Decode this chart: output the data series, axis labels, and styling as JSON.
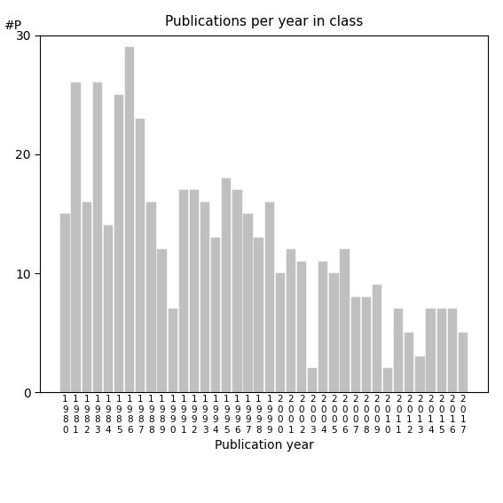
{
  "title": "Publications per year in class",
  "xlabel": "Publication year",
  "ylabel_text": "#P",
  "bar_color": "#c0c0c0",
  "bar_edgecolor": "#c0c0c0",
  "background_color": "#ffffff",
  "ylim": [
    0,
    30
  ],
  "yticks": [
    0,
    10,
    20,
    30
  ],
  "years": [
    1980,
    1981,
    1982,
    1983,
    1984,
    1985,
    1986,
    1987,
    1988,
    1989,
    1990,
    1991,
    1992,
    1993,
    1994,
    1995,
    1996,
    1997,
    1998,
    1999,
    2000,
    2001,
    2002,
    2003,
    2004,
    2005,
    2006,
    2007,
    2008,
    2009,
    2010,
    2011,
    2012,
    2013,
    2014,
    2015,
    2016,
    2017
  ],
  "values": [
    15,
    26,
    16,
    26,
    14,
    25,
    29,
    23,
    16,
    12,
    7,
    17,
    17,
    16,
    13,
    18,
    17,
    15,
    13,
    16,
    10,
    12,
    11,
    2,
    11,
    10,
    12,
    8,
    8,
    9,
    2,
    7,
    5,
    3,
    7,
    7,
    7,
    5
  ]
}
